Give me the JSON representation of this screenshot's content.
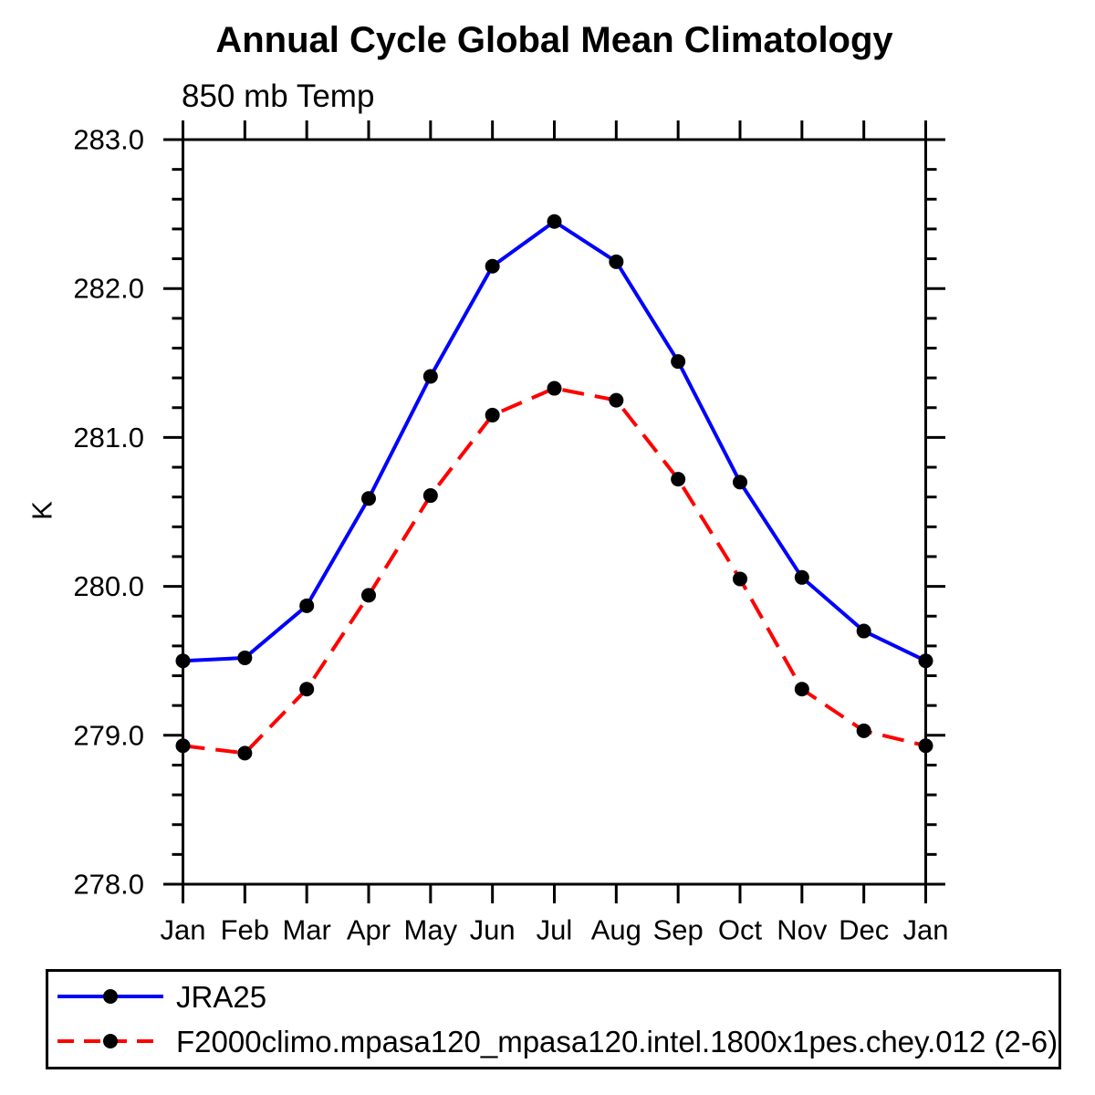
{
  "chart_data": {
    "type": "line",
    "title": "Annual Cycle Global Mean Climatology",
    "subtitle": "850 mb Temp",
    "ylabel": "K",
    "xlabel": "",
    "categories": [
      "Jan",
      "Feb",
      "Mar",
      "Apr",
      "May",
      "Jun",
      "Jul",
      "Aug",
      "Sep",
      "Oct",
      "Nov",
      "Dec",
      "Jan"
    ],
    "ylim": [
      278.0,
      283.0
    ],
    "ytick_labels": [
      "278.0",
      "279.0",
      "280.0",
      "281.0",
      "282.0",
      "283.0"
    ],
    "ytick_interval": 1.0,
    "yminor_step": 0.2,
    "grid": false,
    "legend_position": "bottom-left-box",
    "axis_color": "#000000",
    "marker_color": "#000000",
    "series": [
      {
        "name": "JRA25",
        "color": "#0000ff",
        "line_style": "solid",
        "marker": "filled-circle",
        "values": [
          279.5,
          279.52,
          279.87,
          280.59,
          281.41,
          282.15,
          282.45,
          282.18,
          281.51,
          280.7,
          280.06,
          279.7,
          279.5
        ]
      },
      {
        "name": "F2000climo.mpasa120_mpasa120.intel.1800x1pes.chey.012 (2-6)",
        "color": "#ff0000",
        "line_style": "dashed",
        "marker": "filled-circle",
        "values": [
          278.93,
          278.88,
          279.31,
          279.94,
          280.61,
          281.15,
          281.33,
          281.25,
          280.72,
          280.05,
          279.31,
          279.03,
          278.93
        ]
      }
    ]
  }
}
